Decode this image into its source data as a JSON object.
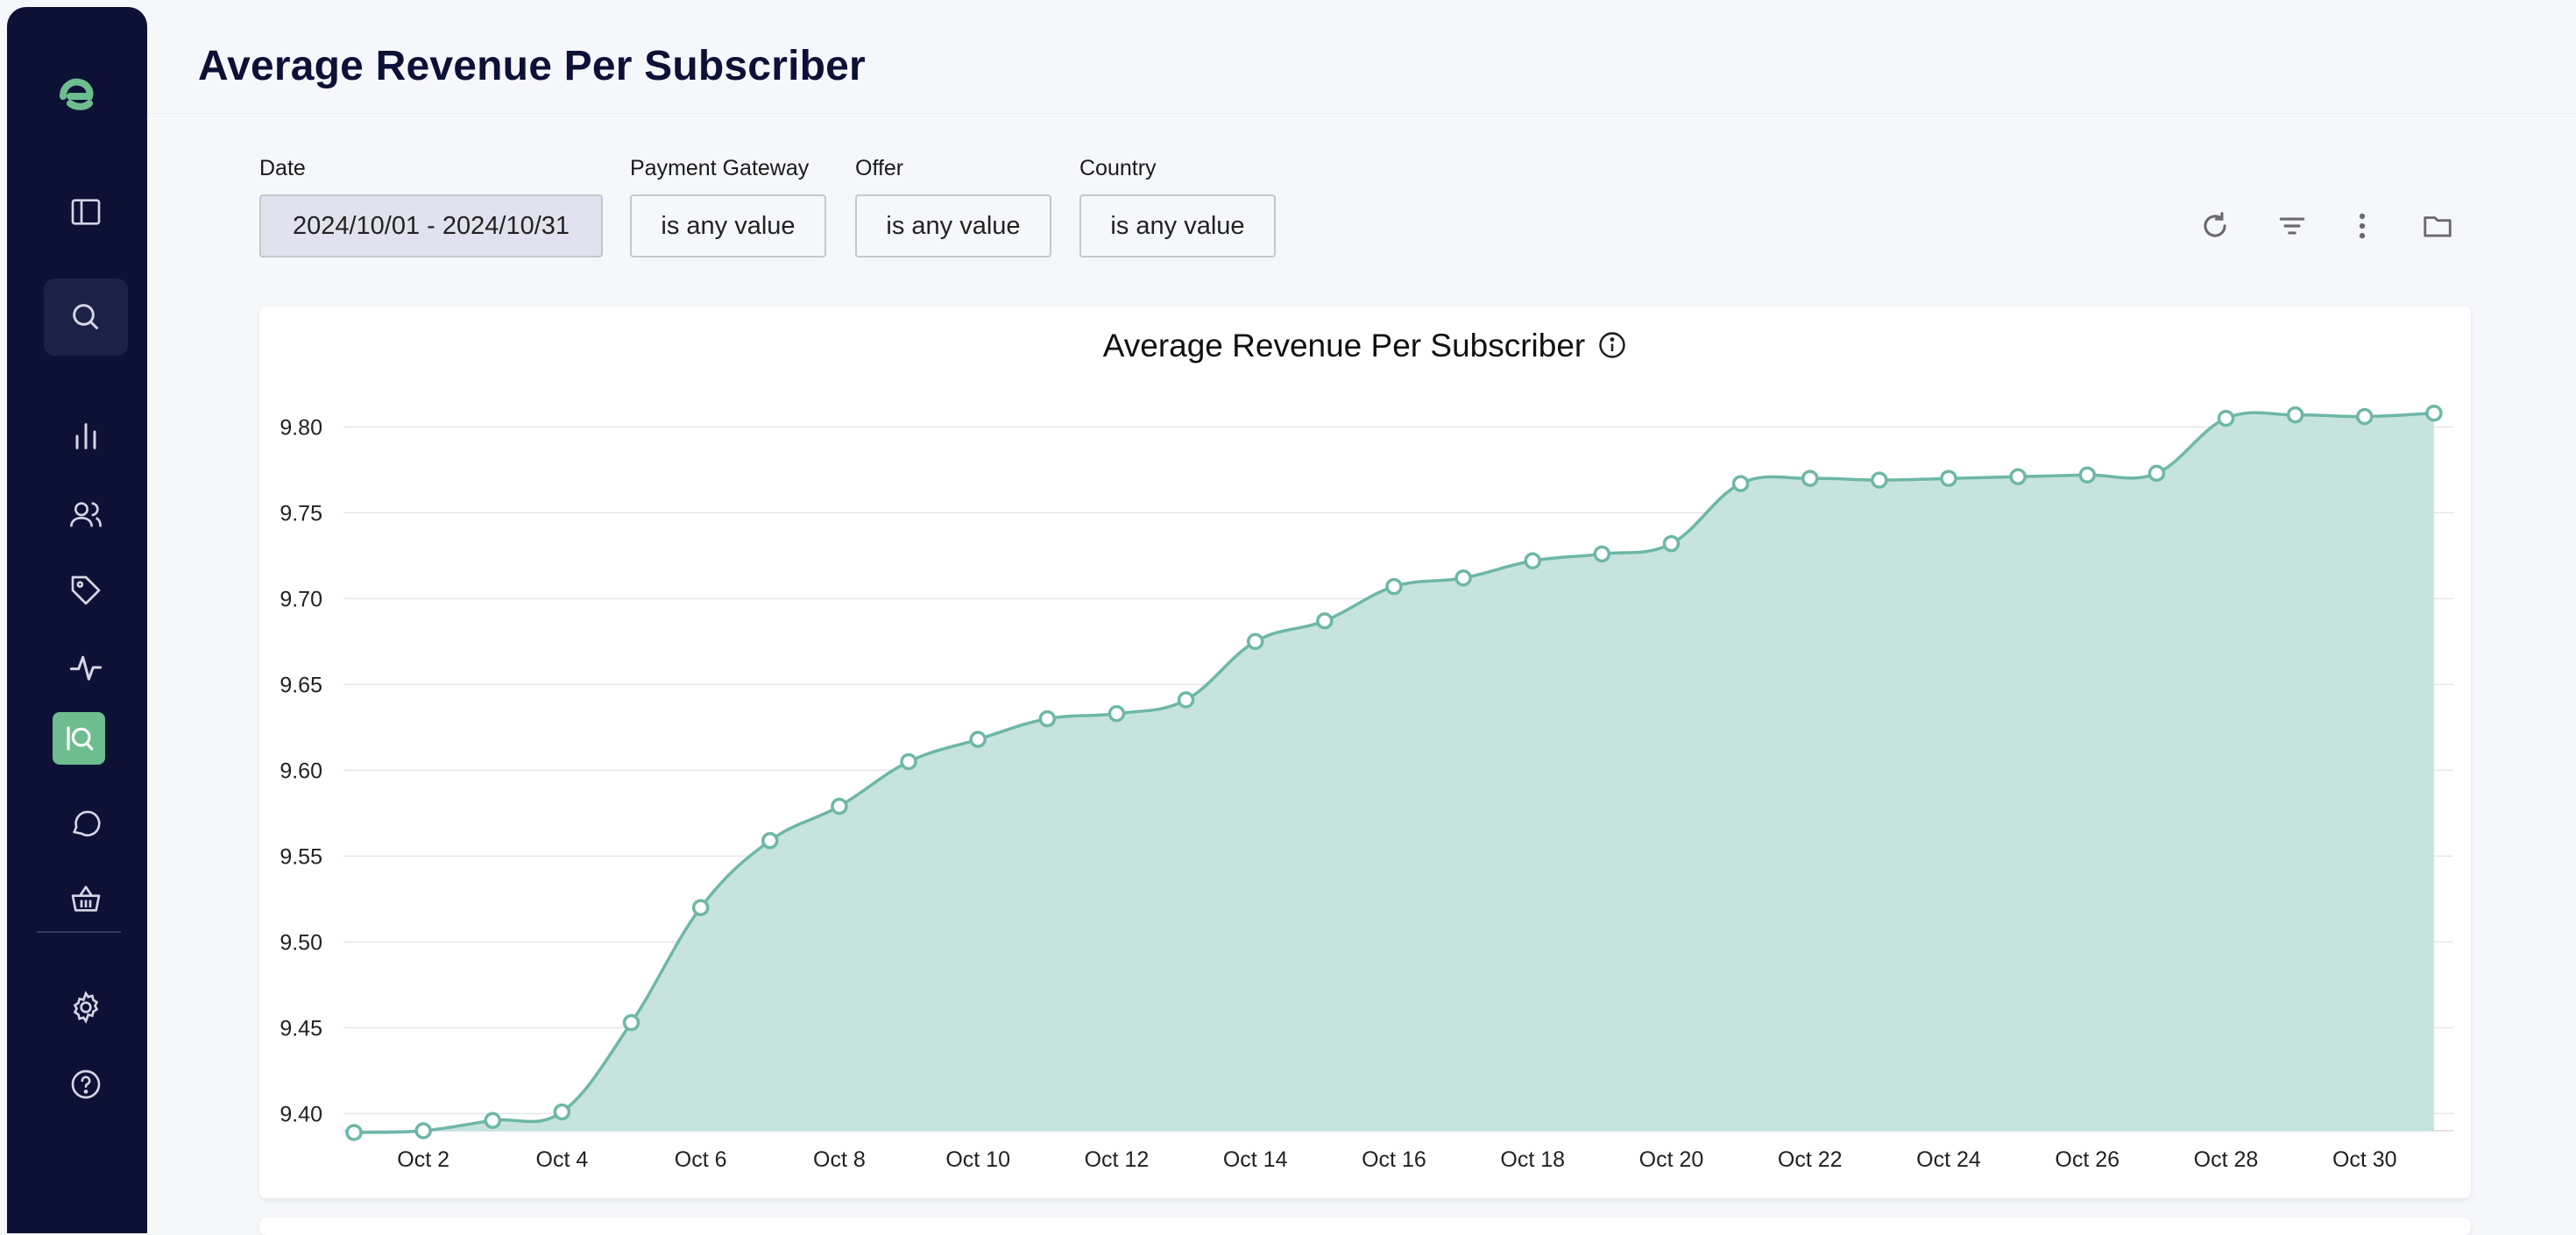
{
  "page": {
    "title": "Average Revenue Per Subscriber"
  },
  "sidebar": {
    "items": [
      {
        "name": "logo",
        "icon": "brand-logo-icon"
      },
      {
        "name": "toggle-sidebar",
        "icon": "sidebar-toggle-icon"
      },
      {
        "name": "search",
        "icon": "search-icon"
      },
      {
        "name": "analytics",
        "icon": "bar-chart-icon"
      },
      {
        "name": "subscribers",
        "icon": "users-icon"
      },
      {
        "name": "offers",
        "icon": "tag-icon"
      },
      {
        "name": "activity",
        "icon": "pulse-icon"
      },
      {
        "name": "iq",
        "icon": "iq-search-icon"
      },
      {
        "name": "messages",
        "icon": "chat-icon"
      },
      {
        "name": "store",
        "icon": "basket-icon"
      },
      {
        "name": "settings",
        "icon": "gear-icon"
      },
      {
        "name": "help",
        "icon": "help-icon"
      }
    ]
  },
  "filters": {
    "date": {
      "label": "Date",
      "value": "2024/10/01 - 2024/10/31"
    },
    "payment_gateway": {
      "label": "Payment Gateway",
      "value": "is any value"
    },
    "offer": {
      "label": "Offer",
      "value": "is any value"
    },
    "country": {
      "label": "Country",
      "value": "is any value"
    }
  },
  "toolbar": {
    "icons": [
      "refresh-icon",
      "filter-icon",
      "more-vertical-icon",
      "folder-icon"
    ]
  },
  "colors": {
    "sidebar_bg": "#0d1136",
    "accent_green": "#6dbd8e",
    "series_line": "#6db7a6",
    "series_fill": "#c6e3de"
  },
  "chart_data": {
    "type": "area",
    "title": "Average Revenue Per Subscriber",
    "xlabel": "",
    "ylabel": "",
    "ylim": [
      9.39,
      9.81
    ],
    "yticks": [
      "9.40",
      "9.45",
      "9.50",
      "9.55",
      "9.60",
      "9.65",
      "9.70",
      "9.75",
      "9.80"
    ],
    "xticks": [
      "Oct 2",
      "Oct 4",
      "Oct 6",
      "Oct 8",
      "Oct 10",
      "Oct 12",
      "Oct 14",
      "Oct 16",
      "Oct 18",
      "Oct 20",
      "Oct 22",
      "Oct 24",
      "Oct 26",
      "Oct 28",
      "Oct 30"
    ],
    "grid": true,
    "legend": "none",
    "x": [
      "Oct 1",
      "Oct 2",
      "Oct 3",
      "Oct 4",
      "Oct 5",
      "Oct 6",
      "Oct 7",
      "Oct 8",
      "Oct 9",
      "Oct 10",
      "Oct 11",
      "Oct 12",
      "Oct 13",
      "Oct 14",
      "Oct 15",
      "Oct 16",
      "Oct 17",
      "Oct 18",
      "Oct 19",
      "Oct 20",
      "Oct 21",
      "Oct 22",
      "Oct 23",
      "Oct 24",
      "Oct 25",
      "Oct 26",
      "Oct 27",
      "Oct 28",
      "Oct 29",
      "Oct 30",
      "Oct 31"
    ],
    "series": [
      {
        "values": [
          9.389,
          9.39,
          9.396,
          9.401,
          9.453,
          9.52,
          9.559,
          9.579,
          9.605,
          9.618,
          9.63,
          9.633,
          9.641,
          9.675,
          9.687,
          9.707,
          9.712,
          9.722,
          9.726,
          9.732,
          9.767,
          9.77,
          9.769,
          9.77,
          9.771,
          9.772,
          9.773,
          9.805,
          9.807,
          9.806,
          9.808
        ]
      }
    ]
  }
}
